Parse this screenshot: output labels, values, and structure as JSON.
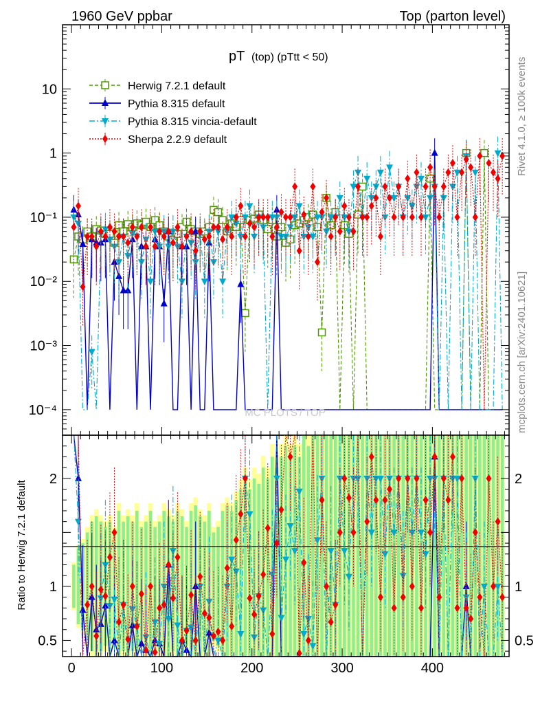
{
  "header": {
    "left": "1960 GeV ppbar",
    "right": "Top (parton level)"
  },
  "side": {
    "rivet": "Rivet 4.1.0, ≥ 100k events",
    "mcplots": "mcplots.cern.ch [arXiv:2401.10621]"
  },
  "watermark": "MC PLOTS / TOP",
  "chart_data": {
    "type": "line",
    "title": "pT (top) (pTtt < 50)",
    "title_main": "pT",
    "title_sub": "(top) (pTtt < 50)",
    "xlabel": "",
    "ylabel_ratio": "Ratio to Herwig 7.2.1 default",
    "main_panel": {
      "yscale": "log",
      "ylim": [
        4e-05,
        100
      ],
      "ytick_labels": [
        {
          "value": 10,
          "label": "10"
        },
        {
          "value": 1,
          "label": "1"
        },
        {
          "value": 0.1,
          "label": "10⁻¹"
        },
        {
          "value": 0.01,
          "label": "10⁻²"
        },
        {
          "value": 0.001,
          "label": "10⁻³"
        },
        {
          "value": 0.0001,
          "label": "10⁻⁴"
        }
      ]
    },
    "ratio_panel": {
      "ylim": [
        0.35,
        2.4
      ],
      "ytick_labels": [
        {
          "value": 2,
          "label": "2"
        },
        {
          "value": 1,
          "label": "1"
        },
        {
          "value": 0.5,
          "label": "0.5"
        }
      ],
      "reference_line": 1
    },
    "xlim": [
      -10,
      485
    ],
    "xtick_labels": [
      {
        "value": 0,
        "label": "0"
      },
      {
        "value": 100,
        "label": "100"
      },
      {
        "value": 200,
        "label": "200"
      },
      {
        "value": 300,
        "label": "300"
      },
      {
        "value": 400,
        "label": "400"
      }
    ],
    "x": [
      2.5,
      7.5,
      12.5,
      17.5,
      22.5,
      27.5,
      32.5,
      37.5,
      42.5,
      47.5,
      52.5,
      57.5,
      62.5,
      67.5,
      72.5,
      77.5,
      82.5,
      87.5,
      92.5,
      97.5,
      102.5,
      107.5,
      112.5,
      117.5,
      122.5,
      127.5,
      132.5,
      137.5,
      142.5,
      147.5,
      152.5,
      157.5,
      162.5,
      167.5,
      172.5,
      177.5,
      182.5,
      187.5,
      192.5,
      197.5,
      202.5,
      207.5,
      212.5,
      217.5,
      222.5,
      227.5,
      232.5,
      237.5,
      242.5,
      247.5,
      252.5,
      257.5,
      262.5,
      267.5,
      272.5,
      277.5,
      282.5,
      287.5,
      292.5,
      297.5,
      302.5,
      307.5,
      312.5,
      317.5,
      322.5,
      327.5,
      332.5,
      337.5,
      342.5,
      347.5,
      352.5,
      357.5,
      362.5,
      367.5,
      372.5,
      377.5,
      382.5,
      387.5,
      392.5,
      397.5,
      402.5,
      407.5,
      412.5,
      417.5,
      422.5,
      427.5,
      432.5,
      437.5,
      442.5,
      447.5,
      452.5,
      457.5,
      462.5,
      467.5,
      472.5,
      477.5
    ],
    "series": [
      {
        "name": "Herwig 7.2.1 default",
        "color": "#4d9900",
        "marker": "open-square",
        "values": [
          0.022,
          0.05,
          0.045,
          0.06,
          0.05,
          0.065,
          0.062,
          0.055,
          0.055,
          0.04,
          0.075,
          0.06,
          0.078,
          0.07,
          0.08,
          0.075,
          0.085,
          0.07,
          0.09,
          0.075,
          0.06,
          0.05,
          0.045,
          0.055,
          0.07,
          0.085,
          0.065,
          0.06,
          0.055,
          0.06,
          0.07,
          0.13,
          0.12,
          0.09,
          0.06,
          0.08,
          0.07,
          0.09,
          0.0032,
          0.09,
          0.095,
          0.11,
          0.09,
          0.065,
          0.09,
          0.05,
          0.07,
          0.04,
          0.045,
          0.075,
          0.08,
          0.09,
          0.1,
          0.11,
          0.07,
          0.0016,
          0.2,
          0.075,
          0.12,
          0.0001,
          0.075,
          0.055,
          0.0001,
          0.11,
          0.3,
          0.0001,
          0.0001,
          0.0001,
          0.0001,
          0.0001,
          0.0001,
          0.0001,
          0.0001,
          0.0001,
          0.0001,
          0.0001,
          0.0001,
          0.0001,
          0.0001,
          0.4,
          0.0001,
          0.0001,
          0.0001,
          0.0001,
          0.0001,
          0.0001,
          0.0001,
          1.0,
          0.0001,
          0.0001,
          0.0001,
          1.0,
          0.0001,
          0.0001,
          0.0001,
          0.0001
        ]
      },
      {
        "name": "Pythia 8.315 default",
        "color": "#0000cc",
        "marker": "filled-triangle-up",
        "values": [
          0.13,
          0.11,
          0.038,
          0.0001,
          0.045,
          0.04,
          0.04,
          0.045,
          0.0001,
          0.02,
          0.012,
          0.0072,
          0.0072,
          0.045,
          0.0001,
          0.035,
          0.035,
          0.0001,
          0.045,
          0.035,
          0.0045,
          0.06,
          0.0001,
          0.0001,
          0.035,
          0.035,
          0.0001,
          0.06,
          0.0001,
          0.0001,
          0.04,
          0.0001,
          0.0001,
          0.0001,
          0.0001,
          0.0001,
          0.0001,
          0.009,
          0.0001,
          0.0001,
          0.0001,
          0.0001,
          0.0001,
          0.0001,
          0.0001,
          0.13,
          0.0001,
          0.0001,
          0.0001,
          0.0001,
          0.0001,
          0.0001,
          0.0001,
          0.0001,
          0.0001,
          0.0001,
          0.0001,
          0.0001,
          0.0001,
          0.0001,
          0.0001,
          0.0001,
          0.0001,
          0.0001,
          0.0001,
          0.0001,
          0.0001,
          0.0001,
          0.0001,
          0.0001,
          0.0001,
          0.0001,
          0.0001,
          0.0001,
          0.0001,
          0.0001,
          0.0001,
          0.0001,
          0.0001,
          0.0001,
          1.0,
          0.0001,
          0.0001,
          0.0001,
          0.0001,
          0.0001,
          0.0001,
          0.0001,
          0.0001,
          0.0001,
          0.0001,
          0.0001,
          0.0001,
          0.0001,
          0.0001,
          0.0001
        ]
      },
      {
        "name": "Pythia 8.315 vincia-default",
        "color": "#00aacc",
        "marker": "filled-triangle-down",
        "values": [
          0.1,
          0.08,
          0.0001,
          0.0001,
          0.0008,
          0.0001,
          0.055,
          0.065,
          0.045,
          0.035,
          0.02,
          0.05,
          0.025,
          0.055,
          0.05,
          0.02,
          0.045,
          0.01,
          0.06,
          0.035,
          0.06,
          0.035,
          0.06,
          0.035,
          0.01,
          0.05,
          0.04,
          0.02,
          0.055,
          0.01,
          0.06,
          0.02,
          0.06,
          0.01,
          0.06,
          0.1,
          0.08,
          0.05,
          0.1,
          0.15,
          0.05,
          0.1,
          0.07,
          0.0001,
          0.1,
          0.1,
          0.05,
          0.05,
          0.07,
          0.1,
          0.15,
          0.05,
          0.07,
          0.05,
          0.1,
          0.1,
          0.06,
          0.1,
          0.1,
          0.2,
          0.1,
          0.06,
          0.3,
          0.5,
          0.1,
          0.4,
          0.2,
          0.3,
          0.5,
          0.1,
          0.6,
          0.2,
          0.3,
          0.1,
          0.2,
          0.15,
          0.3,
          0.4,
          0.1,
          0.2,
          0.3,
          0.0001,
          0.2,
          0.0001,
          0.3,
          0.5,
          0.0001,
          0.9,
          0.0001,
          0.5,
          0.0001,
          0.0001,
          0.0001,
          0.0001,
          1.0,
          0.0001
        ]
      },
      {
        "name": "Sherpa 2.2.9 default",
        "color": "#ee0000",
        "marker": "filled-diamond",
        "values": [
          0.07,
          0.15,
          0.0082,
          0.05,
          0.05,
          0.035,
          0.06,
          0.05,
          0.07,
          0.06,
          0.05,
          0.05,
          0.04,
          0.07,
          0.05,
          0.07,
          0.035,
          0.07,
          0.035,
          0.06,
          0.05,
          0.06,
          0.04,
          0.07,
          0.035,
          0.05,
          0.06,
          0.03,
          0.06,
          0.045,
          0.05,
          0.07,
          0.07,
          0.045,
          0.07,
          0.05,
          0.1,
          0.15,
          0.05,
          0.08,
          0.07,
          0.1,
          0.1,
          0.1,
          0.05,
          0.07,
          0.12,
          0.1,
          0.1,
          0.3,
          0.03,
          0.11,
          0.05,
          0.3,
          0.02,
          0.12,
          0.2,
          0.05,
          0.1,
          0.06,
          0.15,
          0.1,
          0.06,
          0.3,
          0.1,
          0.1,
          0.15,
          0.2,
          0.05,
          0.3,
          0.2,
          0.1,
          0.3,
          0.1,
          0.4,
          0.1,
          0.5,
          0.1,
          0.3,
          0.6,
          0.3,
          0.1,
          0.3,
          0.5,
          0.7,
          0.1,
          0.5,
          0.8,
          0.6,
          0.1,
          0.9,
          0.0001,
          0.7,
          0.5,
          0.4,
          0.9
        ]
      }
    ],
    "ratio_series": [
      {
        "name": "Pythia 8.315 default",
        "values": [
          5.9,
          2.0,
          0.78,
          0.0,
          0.9,
          0.6,
          0.65,
          0.82,
          0.0,
          0.5,
          0.16,
          0.12,
          0.09,
          0.64,
          0.0,
          0.47,
          0.41,
          0.0,
          0.5,
          0.47,
          0.075,
          1.2,
          0.0,
          0.0,
          0.5,
          0.41,
          0.0,
          1.0,
          0.0,
          0.0,
          0.57,
          0.0,
          0.0,
          0.0,
          0.0,
          0.0,
          0.0,
          0.1,
          0.0,
          0.0,
          0.0,
          0.0,
          0.0,
          0.0,
          0.0,
          2.6,
          0.0,
          0.0,
          0.0,
          0.0,
          0.0,
          0.0,
          0.0,
          0.0,
          0.0,
          0.0,
          0.0,
          0.0,
          0.0,
          0.0,
          0.0,
          0.0,
          0.0,
          0.0,
          0.0,
          0.0,
          0.0,
          0.0,
          0.0,
          0.0,
          0.0,
          0.0,
          0.0,
          0.0,
          0.0,
          0.0,
          0.0,
          0.0,
          0.0,
          0.0,
          2.2,
          0.0,
          0.0,
          0.0,
          0.0,
          0.0,
          0.0,
          1.0,
          0.0,
          0.0,
          0.0,
          0.0,
          0.0,
          0.0,
          0.0,
          0.0
        ]
      },
      {
        "name": "Pythia 8.315 vincia-default",
        "values": [
          4.5,
          1.6,
          0.0,
          0.0,
          0.016,
          0.0,
          0.89,
          1.2,
          0.82,
          0.88,
          0.27,
          0.83,
          0.32,
          0.79,
          0.63,
          0.27,
          0.53,
          0.14,
          0.67,
          0.47,
          1.0,
          0.7,
          1.33,
          0.64,
          0.14,
          0.59,
          0.62,
          0.33,
          1.0,
          0.17,
          0.86,
          0.15,
          0.5,
          0.11,
          1.0,
          1.25,
          1.14,
          0.56,
          2.0,
          1.67,
          0.53,
          0.91,
          0.78,
          0.0,
          1.11,
          2.0,
          0.71,
          1.25,
          1.56,
          1.33,
          1.88,
          0.56,
          0.7,
          0.45,
          1.43,
          2.0,
          0.3,
          1.33,
          0.83,
          2.0,
          1.33,
          1.09,
          2.0,
          2.0,
          0.33,
          2.0,
          1.5,
          2.0,
          2.0,
          1.3,
          2.0,
          1.5,
          2.0,
          1.1,
          2.0,
          1.5,
          2.0,
          1.5,
          1.3,
          2.0,
          2.0,
          0.0,
          2.0,
          0.0,
          2.0,
          2.0,
          0.0,
          0.9,
          0.0,
          2.0,
          0.0,
          1.0,
          0.0,
          0.0,
          1.0,
          0.0
        ]
      },
      {
        "name": "Sherpa 2.2.9 default",
        "values": [
          3.2,
          3.0,
          0.18,
          0.83,
          1.0,
          0.54,
          0.97,
          0.91,
          1.27,
          1.5,
          0.67,
          0.83,
          0.51,
          1.0,
          0.63,
          0.93,
          0.41,
          1.0,
          0.39,
          0.8,
          0.83,
          1.2,
          0.89,
          1.27,
          0.5,
          0.59,
          0.92,
          0.5,
          1.09,
          0.75,
          0.71,
          0.54,
          0.58,
          0.5,
          1.17,
          0.63,
          1.43,
          1.67,
          2.0,
          0.89,
          0.74,
          0.91,
          1.11,
          1.54,
          0.56,
          1.4,
          1.71,
          2.5,
          2.2,
          4.0,
          0.38,
          1.22,
          0.5,
          2.7,
          0.29,
          1.8,
          1.0,
          0.67,
          0.83,
          1.5,
          2.0,
          1.82,
          1.5,
          2.7,
          0.33,
          1.6,
          2.2,
          1.8,
          0.9,
          1.8,
          1.9,
          0.8,
          2.0,
          0.9,
          2.0,
          1.0,
          2.0,
          0.8,
          1.8,
          1.5,
          2.2,
          0.9,
          2.0,
          1.8,
          2.2,
          0.8,
          2.0,
          0.8,
          0.7,
          1.5,
          0.9,
          0.0,
          2.0,
          1.0,
          1.6,
          0.9
        ]
      }
    ],
    "mc_bands": {
      "herwig_rel_err": [
        0.2,
        0.35,
        0.4,
        0.5,
        0.6,
        0.65,
        0.6,
        0.55,
        0.6,
        0.5,
        0.7,
        0.6,
        0.65,
        0.6,
        0.7,
        0.55,
        0.6,
        0.7,
        0.55,
        0.6,
        0.7,
        0.65,
        0.6,
        0.7,
        0.65,
        0.55,
        0.7,
        0.75,
        0.65,
        0.6,
        0.7,
        0.5,
        0.55,
        0.7,
        0.75,
        0.7,
        0.8,
        0.9,
        1.0,
        0.9,
        1.0,
        0.95,
        1.1,
        1.0,
        1.2,
        1.1,
        1.2,
        1.3,
        1.2,
        1.3,
        1.2,
        1.4,
        1.3,
        1.4,
        1.5,
        1.4,
        1.5,
        1.5,
        1.4,
        1.5,
        1.5,
        1.5,
        1.5,
        1.6,
        1.5,
        1.6,
        1.5,
        1.6,
        1.6,
        1.5,
        1.6,
        1.6,
        1.5,
        1.6,
        1.6,
        1.6,
        1.6,
        1.6,
        1.6,
        1.6,
        1.6,
        1.6,
        1.6,
        1.6,
        1.6,
        1.6,
        1.6,
        1.6,
        1.6,
        1.6,
        1.6,
        1.6,
        1.6,
        1.6,
        1.6,
        1.6
      ]
    }
  }
}
